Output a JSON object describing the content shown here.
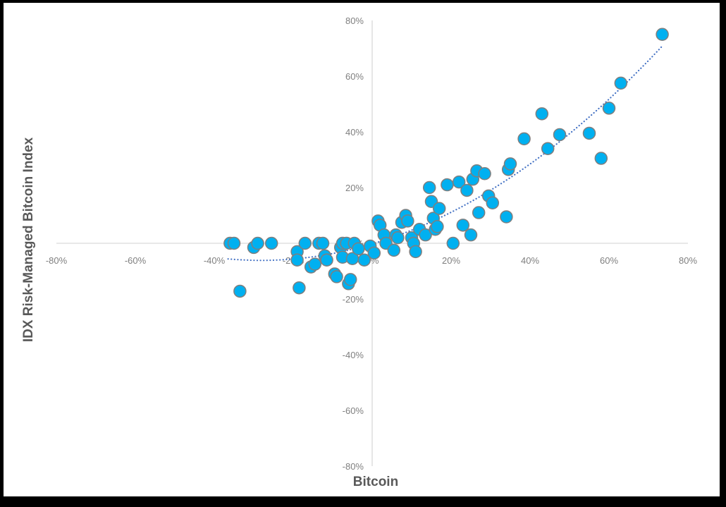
{
  "chart_data": {
    "type": "scatter",
    "title": "",
    "xlabel": "Bitcoin",
    "ylabel": "IDX Risk-Managed Bitcoin Index",
    "xlim": [
      -0.8,
      0.8
    ],
    "ylim": [
      -0.8,
      0.8
    ],
    "x_ticks": [
      "-80%",
      "-60%",
      "-40%",
      "-20%",
      "0%",
      "20%",
      "40%",
      "60%",
      "80%"
    ],
    "y_ticks": [
      "80%",
      "60%",
      "40%",
      "20%",
      "0%",
      "-20%",
      "-40%",
      "-60%",
      "-80%"
    ],
    "grid": false,
    "legend": null,
    "marker_color": "#00B0F0",
    "marker_edge_color": "#7F7F7F",
    "trendline": {
      "style": "dotted",
      "color": "#4472C4",
      "type": "polynomial",
      "x_range": [
        -0.365,
        0.735
      ]
    },
    "series": [
      {
        "name": "IDX Risk-Managed Bitcoin Index vs Bitcoin",
        "points": [
          [
            -0.36,
            0.0
          ],
          [
            -0.35,
            0.0
          ],
          [
            -0.335,
            -0.172
          ],
          [
            -0.3,
            -0.015
          ],
          [
            -0.29,
            0.0
          ],
          [
            -0.255,
            0.0
          ],
          [
            -0.19,
            -0.03
          ],
          [
            -0.19,
            -0.06
          ],
          [
            -0.185,
            -0.16
          ],
          [
            -0.17,
            0.0
          ],
          [
            -0.155,
            -0.085
          ],
          [
            -0.145,
            -0.075
          ],
          [
            -0.135,
            0.0
          ],
          [
            -0.125,
            0.0
          ],
          [
            -0.12,
            -0.045
          ],
          [
            -0.115,
            -0.06
          ],
          [
            -0.095,
            -0.11
          ],
          [
            -0.09,
            -0.12
          ],
          [
            -0.08,
            -0.015
          ],
          [
            -0.075,
            -0.05
          ],
          [
            -0.075,
            0.0
          ],
          [
            -0.065,
            0.0
          ],
          [
            -0.06,
            -0.145
          ],
          [
            -0.055,
            -0.13
          ],
          [
            -0.05,
            -0.055
          ],
          [
            -0.045,
            0.0
          ],
          [
            -0.035,
            -0.02
          ],
          [
            -0.02,
            -0.06
          ],
          [
            -0.005,
            -0.01
          ],
          [
            0.005,
            -0.035
          ],
          [
            0.015,
            0.08
          ],
          [
            0.02,
            0.065
          ],
          [
            0.03,
            0.03
          ],
          [
            0.035,
            0.0
          ],
          [
            0.055,
            -0.025
          ],
          [
            0.06,
            0.03
          ],
          [
            0.065,
            0.02
          ],
          [
            0.075,
            0.075
          ],
          [
            0.085,
            0.1
          ],
          [
            0.09,
            0.08
          ],
          [
            0.1,
            0.02
          ],
          [
            0.105,
            0.0
          ],
          [
            0.11,
            -0.03
          ],
          [
            0.12,
            0.05
          ],
          [
            0.135,
            0.03
          ],
          [
            0.145,
            0.2
          ],
          [
            0.15,
            0.15
          ],
          [
            0.155,
            0.09
          ],
          [
            0.16,
            0.05
          ],
          [
            0.165,
            0.06
          ],
          [
            0.17,
            0.125
          ],
          [
            0.19,
            0.21
          ],
          [
            0.205,
            0.0
          ],
          [
            0.22,
            0.22
          ],
          [
            0.23,
            0.065
          ],
          [
            0.24,
            0.19
          ],
          [
            0.25,
            0.03
          ],
          [
            0.255,
            0.23
          ],
          [
            0.265,
            0.26
          ],
          [
            0.27,
            0.11
          ],
          [
            0.285,
            0.25
          ],
          [
            0.295,
            0.17
          ],
          [
            0.305,
            0.145
          ],
          [
            0.34,
            0.095
          ],
          [
            0.345,
            0.265
          ],
          [
            0.35,
            0.285
          ],
          [
            0.385,
            0.375
          ],
          [
            0.43,
            0.465
          ],
          [
            0.445,
            0.34
          ],
          [
            0.475,
            0.39
          ],
          [
            0.55,
            0.395
          ],
          [
            0.58,
            0.305
          ],
          [
            0.6,
            0.485
          ],
          [
            0.63,
            0.575
          ],
          [
            0.735,
            0.75
          ]
        ]
      }
    ]
  }
}
